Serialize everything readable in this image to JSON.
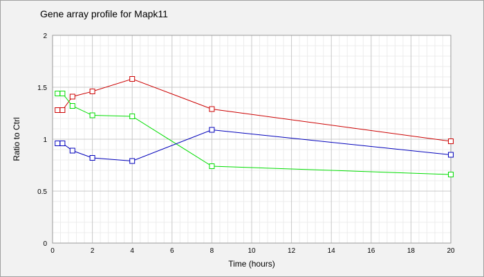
{
  "chart_data": {
    "type": "line",
    "title": "Gene array profile for Mapk11",
    "xlabel": "Time (hours)",
    "ylabel": "Ratio to Ctrl",
    "xlim": [
      0,
      20
    ],
    "ylim": [
      0,
      2
    ],
    "x_ticks": [
      0,
      2,
      4,
      6,
      8,
      10,
      12,
      14,
      16,
      18,
      20
    ],
    "y_ticks": [
      0,
      0.5,
      1,
      1.5,
      2
    ],
    "y_tick_labels": [
      "0",
      "0.5",
      "1",
      "1.5",
      "2"
    ],
    "grid": true,
    "legend": "none",
    "marker": "square",
    "series": [
      {
        "color": "#cc0000",
        "x": [
          0.25,
          0.5,
          1,
          2,
          4,
          8,
          20
        ],
        "y": [
          1.28,
          1.28,
          1.41,
          1.46,
          1.58,
          1.29,
          0.98
        ]
      },
      {
        "color": "#00dd00",
        "x": [
          0.25,
          0.5,
          1,
          2,
          4,
          8,
          20
        ],
        "y": [
          1.44,
          1.44,
          1.32,
          1.23,
          1.22,
          0.74,
          0.66
        ]
      },
      {
        "color": "#0000bb",
        "x": [
          0.25,
          0.5,
          1,
          2,
          4,
          8,
          20
        ],
        "y": [
          0.96,
          0.96,
          0.89,
          0.82,
          0.79,
          1.09,
          0.85
        ]
      }
    ]
  }
}
